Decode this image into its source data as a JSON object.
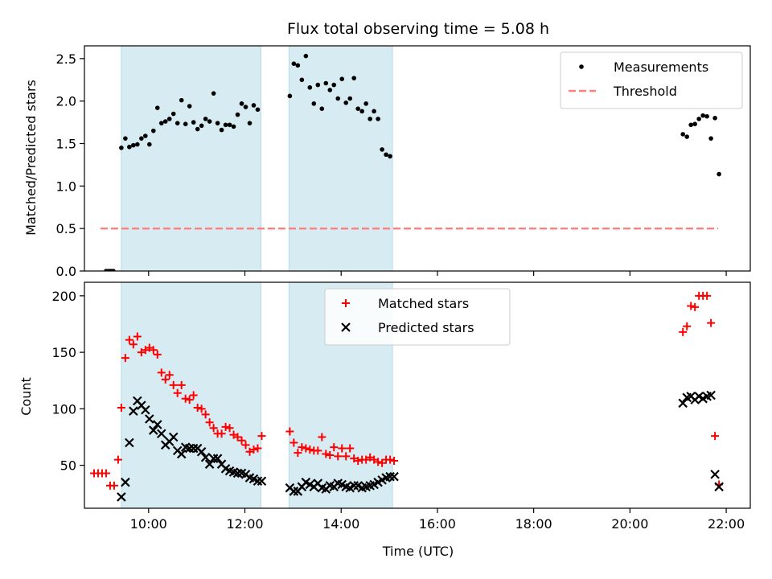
{
  "chart_data": [
    {
      "type": "scatter",
      "title": "Flux total observing time = 5.08 h",
      "xlabel": "",
      "ylabel": "Matched/Predicted stars",
      "xlim": [
        "08:40",
        "22:30"
      ],
      "ylim": [
        0,
        2.65
      ],
      "yticks": [
        "0.0",
        "0.5",
        "1.0",
        "1.5",
        "2.0",
        "2.5"
      ],
      "x_tick_positions": [
        "10:00",
        "12:00",
        "14:00",
        "16:00",
        "18:00",
        "20:00",
        "22:00"
      ],
      "x_ticklabels_shown": false,
      "shaded_intervals": [
        [
          "09:26",
          "12:20"
        ],
        [
          "12:55",
          "15:04"
        ]
      ],
      "shade_color": "#add8e6",
      "legend_position": "top-right",
      "series": [
        {
          "name": "Measurements",
          "kind": "points",
          "color": "#000000",
          "x": [
            "09:07",
            "09:10",
            "09:13",
            "09:16",
            "09:26",
            "09:31",
            "09:36",
            "09:41",
            "09:46",
            "09:51",
            "09:56",
            "10:01",
            "10:06",
            "10:11",
            "10:16",
            "10:21",
            "10:26",
            "10:31",
            "10:36",
            "10:41",
            "10:46",
            "10:51",
            "10:56",
            "11:01",
            "11:06",
            "11:11",
            "11:16",
            "11:21",
            "11:26",
            "11:31",
            "11:36",
            "11:41",
            "11:46",
            "11:51",
            "11:56",
            "12:01",
            "12:06",
            "12:11",
            "12:16",
            "12:56",
            "13:01",
            "13:06",
            "13:11",
            "13:16",
            "13:21",
            "13:26",
            "13:31",
            "13:36",
            "13:41",
            "13:46",
            "13:51",
            "13:56",
            "14:01",
            "14:06",
            "14:11",
            "14:16",
            "14:21",
            "14:26",
            "14:31",
            "14:36",
            "14:41",
            "14:46",
            "14:51",
            "14:56",
            "15:01",
            "21:06",
            "21:11",
            "21:16",
            "21:21",
            "21:26",
            "21:31",
            "21:36",
            "21:41",
            "21:46",
            "21:51"
          ],
          "y": [
            0,
            0,
            0,
            0,
            1.45,
            1.56,
            1.46,
            1.48,
            1.49,
            1.56,
            1.59,
            1.49,
            1.65,
            1.92,
            1.74,
            1.76,
            1.79,
            1.85,
            1.74,
            2.01,
            1.73,
            1.94,
            1.75,
            1.67,
            1.71,
            1.79,
            1.76,
            2.09,
            1.74,
            1.66,
            1.72,
            1.72,
            1.7,
            1.84,
            1.97,
            1.93,
            1.74,
            1.95,
            1.9,
            2.06,
            2.44,
            2.42,
            2.25,
            2.53,
            2.16,
            1.97,
            2.19,
            1.91,
            2.21,
            2.13,
            2.19,
            2.03,
            2.26,
            1.98,
            2.03,
            2.27,
            1.91,
            1.88,
            1.97,
            1.79,
            1.88,
            1.79,
            1.43,
            1.37,
            1.35,
            1.61,
            1.58,
            1.72,
            1.73,
            1.79,
            1.83,
            1.82,
            1.56,
            1.8,
            1.14
          ]
        },
        {
          "name": "Threshold",
          "kind": "dashed-line",
          "color": "#ff7f7f",
          "x": [
            "09:00",
            "21:50"
          ],
          "y": [
            0.5,
            0.5
          ]
        }
      ]
    },
    {
      "type": "scatter",
      "title": "",
      "xlabel": "Time (UTC)",
      "ylabel": "Count",
      "xlim": [
        "08:40",
        "22:30"
      ],
      "ylim": [
        12,
        212
      ],
      "yticks": [
        "50",
        "100",
        "150",
        "200"
      ],
      "xticks": [
        "10:00",
        "12:00",
        "14:00",
        "16:00",
        "18:00",
        "20:00",
        "22:00"
      ],
      "shaded_intervals": [
        [
          "09:26",
          "12:20"
        ],
        [
          "12:55",
          "15:04"
        ]
      ],
      "shade_color": "#add8e6",
      "legend_position": "top-center",
      "series": [
        {
          "name": "Matched stars",
          "kind": "plus",
          "color": "#ff0000",
          "x": [
            "08:52",
            "08:57",
            "09:02",
            "09:07",
            "09:12",
            "09:17",
            "09:22",
            "09:26",
            "09:31",
            "09:36",
            "09:41",
            "09:46",
            "09:51",
            "09:56",
            "10:01",
            "10:06",
            "10:11",
            "10:16",
            "10:21",
            "10:26",
            "10:31",
            "10:36",
            "10:41",
            "10:46",
            "10:51",
            "10:56",
            "11:01",
            "11:06",
            "11:11",
            "11:16",
            "11:21",
            "11:26",
            "11:31",
            "11:36",
            "11:41",
            "11:46",
            "11:51",
            "11:56",
            "12:01",
            "12:06",
            "12:11",
            "12:16",
            "12:21",
            "12:56",
            "13:01",
            "13:06",
            "13:11",
            "13:16",
            "13:21",
            "13:26",
            "13:31",
            "13:36",
            "13:41",
            "13:46",
            "13:51",
            "13:56",
            "14:01",
            "14:06",
            "14:11",
            "14:16",
            "14:21",
            "14:26",
            "14:31",
            "14:36",
            "14:41",
            "14:46",
            "14:51",
            "14:56",
            "15:01",
            "15:06",
            "21:06",
            "21:11",
            "21:16",
            "21:21",
            "21:26",
            "21:31",
            "21:36",
            "21:41",
            "21:46",
            "21:51"
          ],
          "y": [
            43,
            43,
            43,
            43,
            32,
            32,
            55,
            101,
            145,
            161,
            157,
            164,
            150,
            152,
            154,
            152,
            148,
            132,
            126,
            130,
            121,
            114,
            121,
            109,
            108,
            112,
            101,
            100,
            95,
            88,
            83,
            78,
            78,
            84,
            83,
            77,
            75,
            72,
            68,
            62,
            64,
            65,
            76,
            80,
            70,
            61,
            66,
            65,
            64,
            63,
            63,
            75,
            60,
            59,
            66,
            58,
            65,
            58,
            65,
            56,
            54,
            55,
            55,
            57,
            55,
            53,
            52,
            55,
            55,
            54,
            168,
            173,
            191,
            190,
            200,
            200,
            200,
            176,
            76,
            33
          ]
        },
        {
          "name": "Predicted stars",
          "kind": "x",
          "color": "#000000",
          "x": [
            "09:26",
            "09:31",
            "09:36",
            "09:41",
            "09:46",
            "09:51",
            "09:56",
            "10:01",
            "10:06",
            "10:11",
            "10:16",
            "10:21",
            "10:26",
            "10:31",
            "10:36",
            "10:41",
            "10:46",
            "10:51",
            "10:56",
            "11:01",
            "11:06",
            "11:11",
            "11:16",
            "11:21",
            "11:26",
            "11:31",
            "11:36",
            "11:41",
            "11:46",
            "11:51",
            "11:56",
            "12:01",
            "12:06",
            "12:11",
            "12:16",
            "12:21",
            "12:56",
            "13:01",
            "13:06",
            "13:11",
            "13:16",
            "13:21",
            "13:26",
            "13:31",
            "13:36",
            "13:41",
            "13:46",
            "13:51",
            "13:56",
            "14:01",
            "14:06",
            "14:11",
            "14:16",
            "14:21",
            "14:26",
            "14:31",
            "14:36",
            "14:41",
            "14:46",
            "14:51",
            "14:56",
            "15:01",
            "15:06",
            "21:06",
            "21:11",
            "21:16",
            "21:21",
            "21:26",
            "21:31",
            "21:36",
            "21:41",
            "21:46",
            "21:51"
          ],
          "y": [
            22,
            35,
            70,
            98,
            107,
            103,
            99,
            91,
            81,
            86,
            78,
            68,
            71,
            75,
            63,
            60,
            66,
            65,
            65,
            65,
            62,
            57,
            51,
            56,
            56,
            51,
            47,
            45,
            44,
            43,
            43,
            42,
            39,
            38,
            36,
            36,
            30,
            27,
            27,
            31,
            35,
            33,
            31,
            34,
            30,
            29,
            32,
            31,
            34,
            33,
            31,
            30,
            32,
            32,
            30,
            31,
            32,
            33,
            35,
            37,
            39,
            40,
            40,
            105,
            110,
            111,
            108,
            111,
            109,
            111,
            112,
            42,
            31
          ]
        }
      ]
    }
  ]
}
